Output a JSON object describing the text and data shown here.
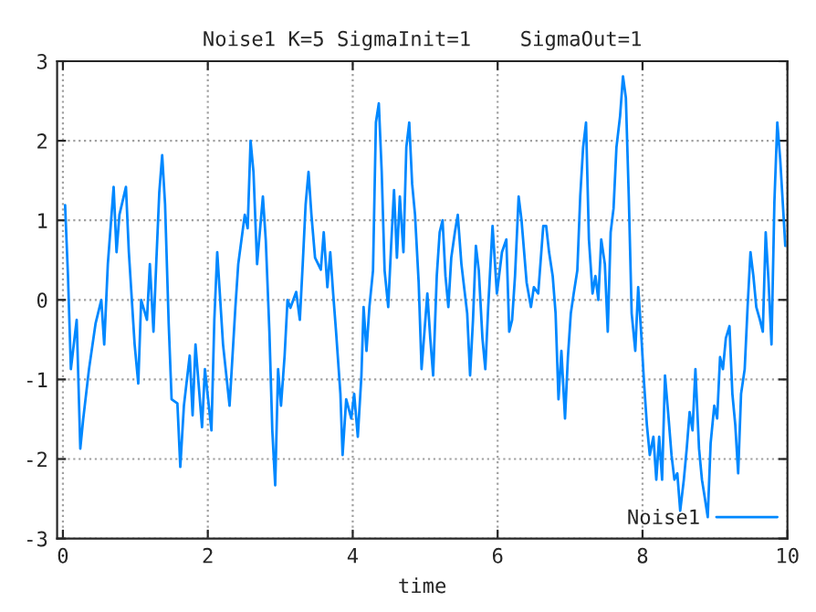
{
  "chart_data": {
    "type": "line",
    "title": "Noise1 K=5 SigmaInit=1    SigmaOut=1",
    "xlabel": "time",
    "xlim": [
      -0.08,
      10
    ],
    "xticks": [
      0,
      2,
      4,
      6,
      8,
      10
    ],
    "ylim": [
      -3,
      3
    ],
    "yticks": [
      -3,
      -2,
      -1,
      0,
      1,
      2,
      3
    ],
    "grid": true,
    "legend": "bottom right",
    "marker": "none",
    "line_style": "solid",
    "series": [
      {
        "name": "Noise1",
        "color": "#0088ff",
        "x": [
          0.03,
          0.07,
          0.11,
          0.19,
          0.24,
          0.28,
          0.36,
          0.45,
          0.53,
          0.57,
          0.62,
          0.7,
          0.74,
          0.78,
          0.87,
          0.91,
          0.99,
          1.04,
          1.08,
          1.16,
          1.2,
          1.25,
          1.29,
          1.33,
          1.37,
          1.41,
          1.46,
          1.5,
          1.58,
          1.62,
          1.67,
          1.75,
          1.79,
          1.83,
          1.92,
          1.96,
          2.05,
          2.09,
          2.13,
          2.21,
          2.3,
          2.38,
          2.42,
          2.51,
          2.55,
          2.59,
          2.63,
          2.68,
          2.76,
          2.8,
          2.85,
          2.89,
          2.93,
          2.97,
          3.01,
          3.06,
          3.1,
          3.14,
          3.22,
          3.27,
          3.31,
          3.35,
          3.39,
          3.43,
          3.48,
          3.56,
          3.6,
          3.65,
          3.69,
          3.73,
          3.77,
          3.83,
          3.86,
          3.91,
          3.98,
          4.02,
          4.07,
          4.12,
          4.15,
          4.19,
          4.23,
          4.28,
          4.32,
          4.36,
          4.4,
          4.44,
          4.49,
          4.53,
          4.57,
          4.61,
          4.65,
          4.7,
          4.74,
          4.78,
          4.82,
          4.86,
          4.91,
          4.95,
          4.99,
          5.03,
          5.07,
          5.11,
          5.16,
          5.2,
          5.24,
          5.28,
          5.32,
          5.36,
          5.41,
          5.45,
          5.5,
          5.58,
          5.62,
          5.66,
          5.7,
          5.74,
          5.79,
          5.83,
          5.87,
          5.93,
          5.99,
          6.06,
          6.12,
          6.16,
          6.2,
          6.24,
          6.29,
          6.33,
          6.4,
          6.46,
          6.5,
          6.56,
          6.63,
          6.67,
          6.71,
          6.76,
          6.8,
          6.84,
          6.88,
          6.93,
          6.97,
          7.01,
          7.05,
          7.1,
          7.14,
          7.18,
          7.22,
          7.26,
          7.31,
          7.35,
          7.39,
          7.43,
          7.48,
          7.52,
          7.56,
          7.6,
          7.64,
          7.69,
          7.73,
          7.77,
          7.81,
          7.85,
          7.9,
          7.94,
          7.98,
          8.02,
          8.06,
          8.1,
          8.15,
          8.19,
          8.23,
          8.27,
          8.31,
          8.36,
          8.4,
          8.44,
          8.48,
          8.52,
          8.57,
          8.61,
          8.65,
          8.69,
          8.73,
          8.78,
          8.82,
          8.86,
          8.9,
          8.94,
          8.99,
          9.03,
          9.07,
          9.11,
          9.15,
          9.2,
          9.24,
          9.28,
          9.32,
          9.36,
          9.41,
          9.45,
          9.49,
          9.53,
          9.57,
          9.62,
          9.66,
          9.7,
          9.74,
          9.78,
          9.82,
          9.86,
          9.9,
          9.95,
          9.97
        ],
        "values": [
          1.19,
          0.3,
          -0.87,
          -0.25,
          -1.87,
          -1.5,
          -0.87,
          -0.3,
          0.0,
          -0.56,
          0.45,
          1.42,
          0.6,
          1.07,
          1.42,
          0.6,
          -0.56,
          -1.05,
          0.0,
          -0.25,
          0.45,
          -0.4,
          0.5,
          1.35,
          1.82,
          1.2,
          -0.3,
          -1.25,
          -1.3,
          -2.1,
          -1.33,
          -0.7,
          -1.45,
          -0.56,
          -1.6,
          -0.87,
          -1.64,
          -0.25,
          0.6,
          -0.56,
          -1.33,
          -0.1,
          0.45,
          1.07,
          0.9,
          2.0,
          1.61,
          0.45,
          1.3,
          0.75,
          -0.4,
          -1.64,
          -2.33,
          -0.87,
          -1.33,
          -0.7,
          0.0,
          -0.1,
          0.1,
          -0.25,
          0.45,
          1.2,
          1.61,
          1.07,
          0.53,
          0.38,
          0.85,
          0.16,
          0.6,
          0.08,
          -0.4,
          -1.18,
          -1.95,
          -1.25,
          -1.49,
          -1.18,
          -1.72,
          -0.95,
          -0.09,
          -0.64,
          -0.09,
          0.37,
          2.23,
          2.47,
          1.61,
          0.37,
          -0.09,
          0.68,
          1.38,
          0.53,
          1.3,
          0.6,
          1.92,
          2.23,
          1.46,
          1.07,
          0.22,
          -0.87,
          -0.4,
          0.08,
          -0.48,
          -0.95,
          0.3,
          0.85,
          1.0,
          0.3,
          -0.09,
          0.53,
          0.85,
          1.07,
          0.45,
          -0.17,
          -0.95,
          -0.25,
          0.68,
          0.37,
          -0.48,
          -0.87,
          -0.09,
          0.93,
          0.08,
          0.6,
          0.76,
          -0.4,
          -0.25,
          0.3,
          1.3,
          1.0,
          0.22,
          -0.09,
          0.16,
          0.08,
          0.93,
          0.93,
          0.6,
          0.3,
          -0.17,
          -1.25,
          -0.64,
          -1.49,
          -0.72,
          -0.17,
          0.08,
          0.37,
          1.3,
          1.92,
          2.23,
          0.76,
          0.08,
          0.3,
          0.0,
          0.76,
          0.45,
          -0.4,
          0.85,
          1.15,
          1.92,
          2.31,
          2.81,
          2.54,
          1.3,
          -0.17,
          -0.64,
          0.16,
          -0.4,
          -1.03,
          -1.57,
          -1.95,
          -1.72,
          -2.26,
          -1.72,
          -2.26,
          -0.95,
          -1.49,
          -1.95,
          -2.26,
          -2.18,
          -2.65,
          -2.26,
          -1.87,
          -1.41,
          -1.64,
          -0.87,
          -1.87,
          -2.26,
          -2.49,
          -2.73,
          -1.8,
          -1.33,
          -1.49,
          -0.72,
          -0.87,
          -0.48,
          -0.33,
          -1.18,
          -1.57,
          -2.18,
          -1.18,
          -0.87,
          -0.09,
          0.6,
          0.3,
          -0.09,
          -0.25,
          -0.4,
          0.85,
          0.22,
          -0.56,
          1.23,
          2.23,
          1.77,
          1.0,
          0.68
        ]
      }
    ]
  }
}
